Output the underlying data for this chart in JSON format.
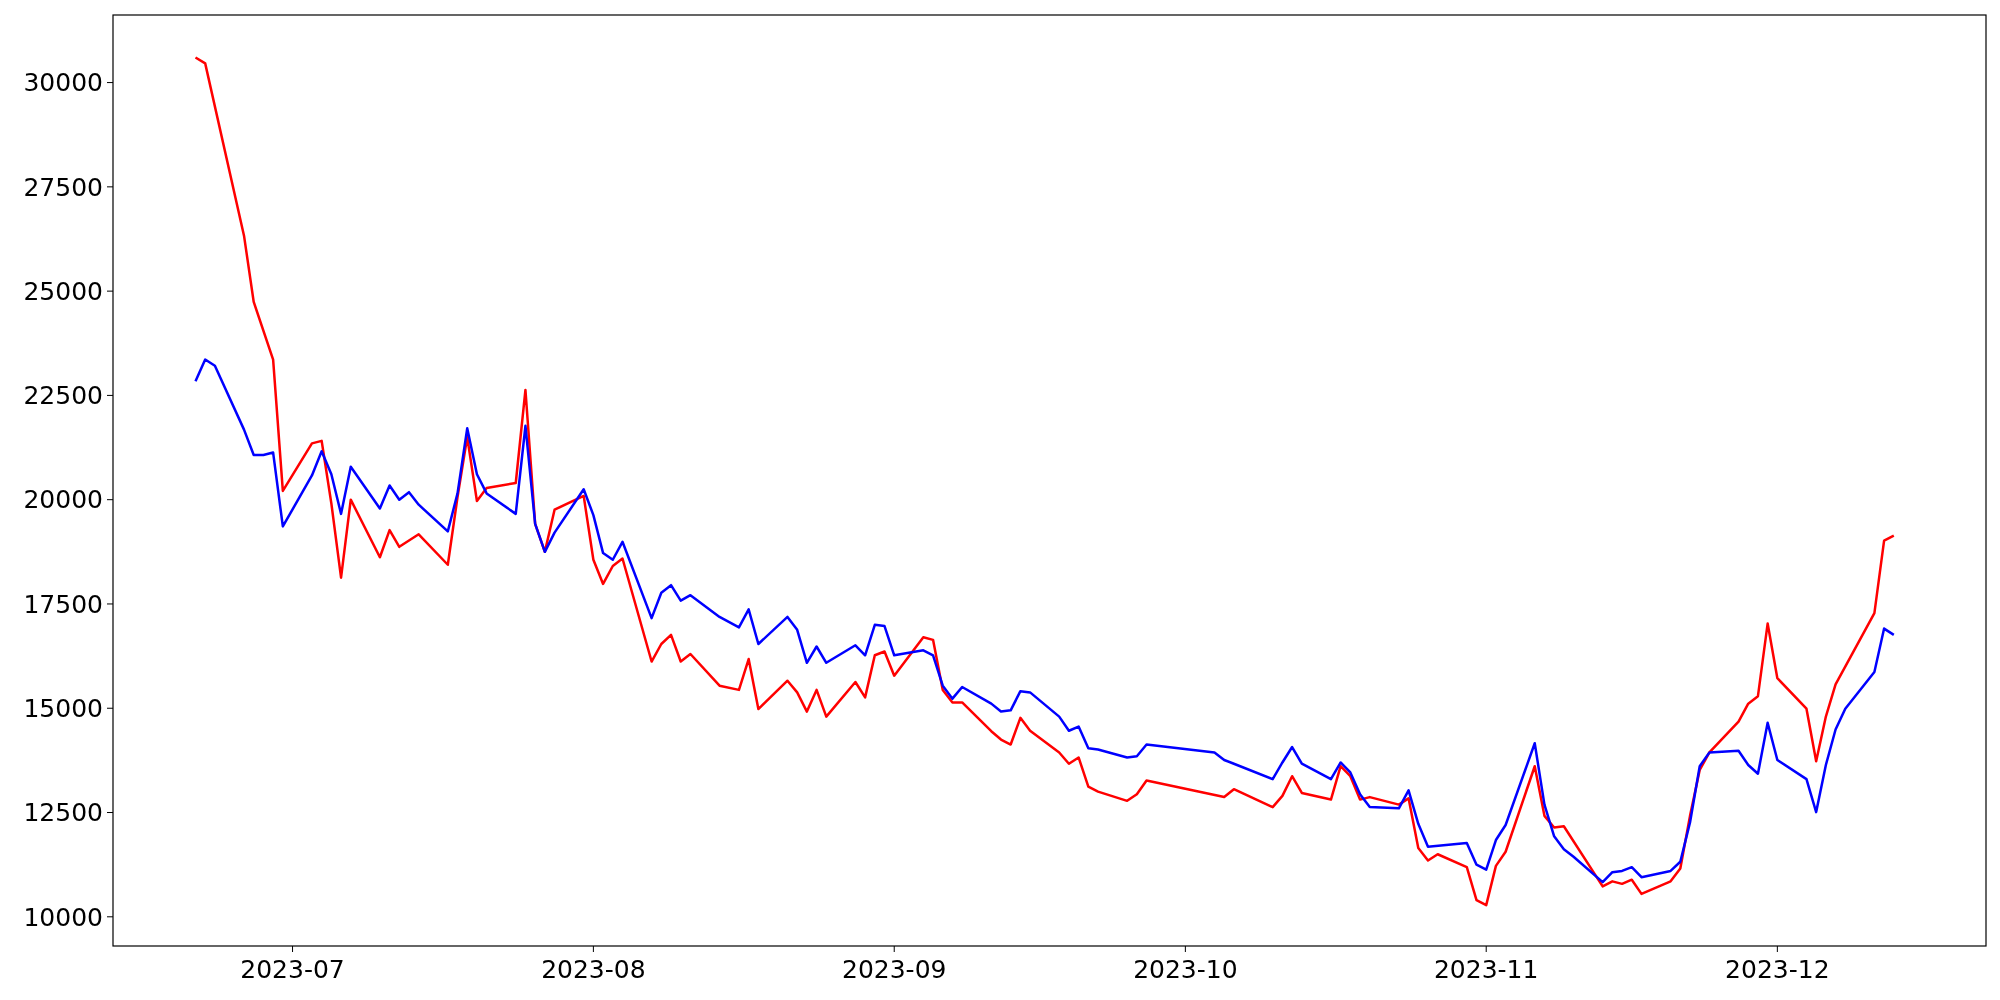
{
  "chart_data": {
    "type": "line",
    "xlim": [
      "2023-06-12T12:00",
      "2023-12-22T12:00"
    ],
    "ylim": [
      9300,
      31620
    ],
    "xticks": [
      {
        "value": "2023-07-01",
        "label": "2023-07"
      },
      {
        "value": "2023-08-01",
        "label": "2023-08"
      },
      {
        "value": "2023-09-01",
        "label": "2023-09"
      },
      {
        "value": "2023-10-01",
        "label": "2023-10"
      },
      {
        "value": "2023-11-01",
        "label": "2023-11"
      },
      {
        "value": "2023-12-01",
        "label": "2023-12"
      }
    ],
    "yticks": [
      10000,
      12500,
      15000,
      17500,
      20000,
      22500,
      25000,
      27500,
      30000
    ],
    "series": [
      {
        "color": "#ff0000",
        "x": [
          "2023-06-21",
          "2023-06-22",
          "2023-06-26",
          "2023-06-27",
          "2023-06-29",
          "2023-06-30",
          "2023-07-03",
          "2023-07-04",
          "2023-07-05",
          "2023-07-06",
          "2023-07-07",
          "2023-07-10",
          "2023-07-11",
          "2023-07-12",
          "2023-07-14",
          "2023-07-17",
          "2023-07-18",
          "2023-07-19",
          "2023-07-20",
          "2023-07-21",
          "2023-07-24",
          "2023-07-25",
          "2023-07-26",
          "2023-07-27",
          "2023-07-28",
          "2023-07-31",
          "2023-08-01",
          "2023-08-02",
          "2023-08-03",
          "2023-08-04",
          "2023-08-07",
          "2023-08-08",
          "2023-08-09",
          "2023-08-10",
          "2023-08-11",
          "2023-08-14",
          "2023-08-16",
          "2023-08-17",
          "2023-08-18",
          "2023-08-21",
          "2023-08-22",
          "2023-08-23",
          "2023-08-24",
          "2023-08-25",
          "2023-08-28",
          "2023-08-29",
          "2023-08-30",
          "2023-08-31",
          "2023-09-01",
          "2023-09-04",
          "2023-09-05",
          "2023-09-06",
          "2023-09-07",
          "2023-09-08",
          "2023-09-11",
          "2023-09-12",
          "2023-09-13",
          "2023-09-14",
          "2023-09-15",
          "2023-09-18",
          "2023-09-19",
          "2023-09-20",
          "2023-09-21",
          "2023-09-22",
          "2023-09-25",
          "2023-09-26",
          "2023-09-27",
          "2023-10-05",
          "2023-10-06",
          "2023-10-10",
          "2023-10-11",
          "2023-10-12",
          "2023-10-13",
          "2023-10-16",
          "2023-10-17",
          "2023-10-18",
          "2023-10-19",
          "2023-10-20",
          "2023-10-23",
          "2023-10-24",
          "2023-10-25",
          "2023-10-26",
          "2023-10-27",
          "2023-10-30",
          "2023-10-31",
          "2023-11-01",
          "2023-11-02",
          "2023-11-03",
          "2023-11-06",
          "2023-11-07",
          "2023-11-08",
          "2023-11-09",
          "2023-11-13",
          "2023-11-14",
          "2023-11-15",
          "2023-11-16",
          "2023-11-17",
          "2023-11-20",
          "2023-11-21",
          "2023-11-22",
          "2023-11-23",
          "2023-11-24",
          "2023-11-27",
          "2023-11-28",
          "2023-11-29",
          "2023-11-30",
          "2023-12-01",
          "2023-12-04",
          "2023-12-05",
          "2023-12-06",
          "2023-12-07",
          "2023-12-11",
          "2023-12-12",
          "2023-12-13"
        ],
        "values": [
          30600,
          30460,
          26330,
          24740,
          23360,
          20210,
          21350,
          21410,
          19910,
          18130,
          20000,
          18620,
          19270,
          18870,
          19170,
          18440,
          20060,
          21500,
          19970,
          20280,
          20400,
          22630,
          19420,
          18750,
          19760,
          20090,
          18560,
          17980,
          18410,
          18590,
          16120,
          16540,
          16760,
          16120,
          16300,
          15540,
          15440,
          16180,
          14980,
          15660,
          15380,
          14920,
          15440,
          14800,
          15630,
          15260,
          16270,
          16360,
          15780,
          16700,
          16640,
          15440,
          15140,
          15140,
          14450,
          14250,
          14130,
          14770,
          14460,
          13940,
          13670,
          13820,
          13120,
          13000,
          12780,
          12940,
          13270,
          12870,
          13060,
          12630,
          12900,
          13370,
          12970,
          12810,
          13610,
          13370,
          12810,
          12870,
          12690,
          12840,
          11650,
          11350,
          11500,
          11190,
          10400,
          10280,
          11220,
          11560,
          13610,
          12420,
          12140,
          12170,
          10730,
          10850,
          10790,
          10890,
          10550,
          10850,
          11160,
          12420,
          13520,
          13940,
          14680,
          15110,
          15290,
          17030,
          15720,
          14990,
          13730,
          14800,
          15570,
          17280,
          19020,
          19140
        ]
      },
      {
        "color": "#0000ff",
        "x": [
          "2023-06-21",
          "2023-06-22",
          "2023-06-23",
          "2023-06-26",
          "2023-06-27",
          "2023-06-28",
          "2023-06-29",
          "2023-06-30",
          "2023-07-03",
          "2023-07-04",
          "2023-07-05",
          "2023-07-06",
          "2023-07-07",
          "2023-07-10",
          "2023-07-11",
          "2023-07-12",
          "2023-07-13",
          "2023-07-14",
          "2023-07-17",
          "2023-07-18",
          "2023-07-19",
          "2023-07-20",
          "2023-07-21",
          "2023-07-24",
          "2023-07-25",
          "2023-07-26",
          "2023-07-27",
          "2023-07-28",
          "2023-07-31",
          "2023-08-01",
          "2023-08-02",
          "2023-08-03",
          "2023-08-04",
          "2023-08-07",
          "2023-08-08",
          "2023-08-09",
          "2023-08-10",
          "2023-08-11",
          "2023-08-14",
          "2023-08-16",
          "2023-08-17",
          "2023-08-18",
          "2023-08-21",
          "2023-08-22",
          "2023-08-23",
          "2023-08-24",
          "2023-08-25",
          "2023-08-28",
          "2023-08-29",
          "2023-08-30",
          "2023-08-31",
          "2023-09-01",
          "2023-09-04",
          "2023-09-05",
          "2023-09-06",
          "2023-09-07",
          "2023-09-08",
          "2023-09-11",
          "2023-09-12",
          "2023-09-13",
          "2023-09-14",
          "2023-09-15",
          "2023-09-18",
          "2023-09-19",
          "2023-09-20",
          "2023-09-21",
          "2023-09-22",
          "2023-09-25",
          "2023-09-26",
          "2023-09-27",
          "2023-10-04",
          "2023-10-05",
          "2023-10-06",
          "2023-10-10",
          "2023-10-11",
          "2023-10-12",
          "2023-10-13",
          "2023-10-16",
          "2023-10-17",
          "2023-10-18",
          "2023-10-19",
          "2023-10-20",
          "2023-10-23",
          "2023-10-24",
          "2023-10-25",
          "2023-10-26",
          "2023-10-30",
          "2023-10-31",
          "2023-11-01",
          "2023-11-02",
          "2023-11-03",
          "2023-11-06",
          "2023-11-07",
          "2023-11-08",
          "2023-11-09",
          "2023-11-10",
          "2023-11-13",
          "2023-11-14",
          "2023-11-15",
          "2023-11-16",
          "2023-11-17",
          "2023-11-20",
          "2023-11-21",
          "2023-11-22",
          "2023-11-23",
          "2023-11-24",
          "2023-11-27",
          "2023-11-28",
          "2023-11-29",
          "2023-11-30",
          "2023-12-01",
          "2023-12-04",
          "2023-12-05",
          "2023-12-06",
          "2023-12-07",
          "2023-12-08",
          "2023-12-11",
          "2023-12-12",
          "2023-12-13"
        ],
        "values": [
          22840,
          23360,
          23210,
          21680,
          21070,
          21070,
          21130,
          19360,
          20580,
          21160,
          20610,
          19660,
          20790,
          19790,
          20340,
          20000,
          20180,
          19880,
          19240,
          20150,
          21710,
          20610,
          20150,
          19660,
          21770,
          19420,
          18750,
          19210,
          20250,
          19630,
          18720,
          18560,
          18990,
          17160,
          17770,
          17950,
          17580,
          17710,
          17190,
          16940,
          17370,
          16540,
          17190,
          16880,
          16090,
          16480,
          16090,
          16510,
          16270,
          17000,
          16970,
          16270,
          16390,
          16270,
          15540,
          15230,
          15510,
          15110,
          14920,
          14950,
          15410,
          15380,
          14800,
          14460,
          14560,
          14040,
          14010,
          13820,
          13850,
          14130,
          13940,
          13760,
          13670,
          13300,
          13700,
          14070,
          13670,
          13300,
          13700,
          13460,
          12940,
          12630,
          12600,
          13030,
          12230,
          11680,
          11770,
          11250,
          11130,
          11840,
          12200,
          14160,
          12690,
          11930,
          11620,
          11440,
          10830,
          11070,
          11100,
          11190,
          10950,
          11100,
          11320,
          12260,
          13610,
          13940,
          13980,
          13640,
          13430,
          14650,
          13760,
          13300,
          12510,
          13640,
          14490,
          14990,
          15870,
          16910,
          16760
        ]
      }
    ]
  }
}
